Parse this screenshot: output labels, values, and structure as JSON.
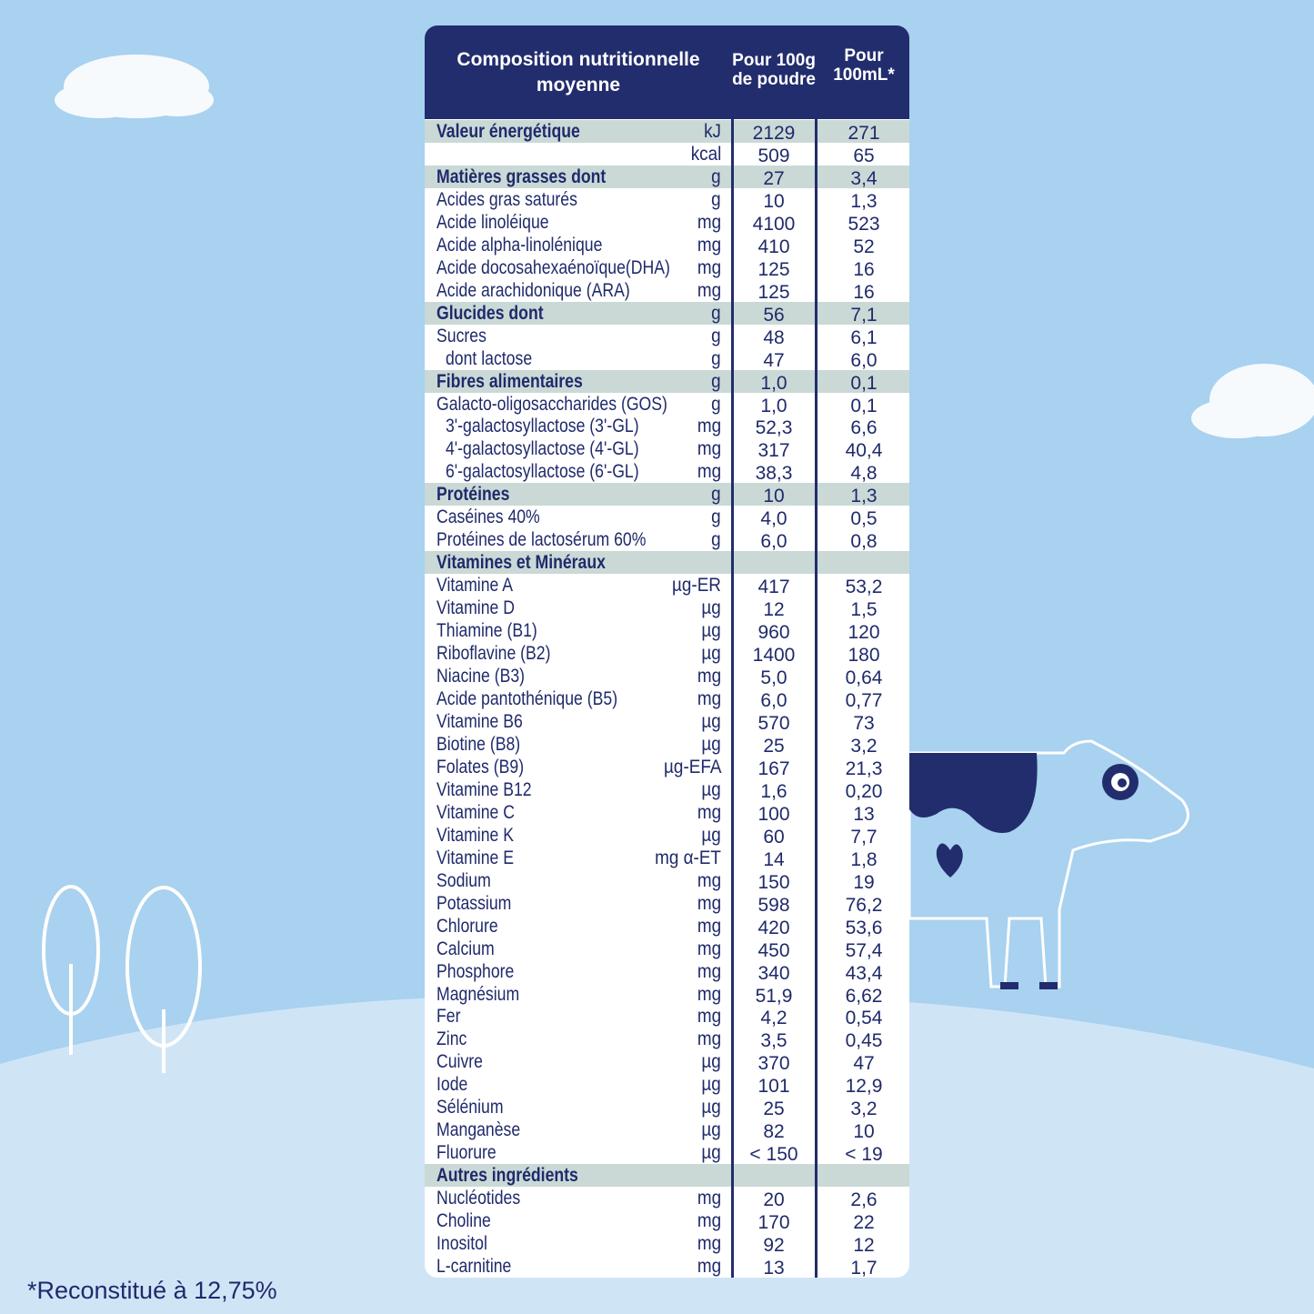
{
  "header": {
    "col1": "Composition nutritionnelle moyenne",
    "col2": "Pour 100g de poudre",
    "col3": "Pour 100mL*"
  },
  "sections": [
    {
      "label": "Valeur énergétique",
      "unit": "kJ",
      "per_100g": "2129",
      "per_100ml": "271",
      "rows": [
        {
          "unit": "kcal",
          "per_100g": "509",
          "per_100ml": "65"
        }
      ]
    },
    {
      "label": "Matières grasses dont",
      "unit": "g",
      "per_100g": "27",
      "per_100ml": "3,4",
      "rows": [
        {
          "label": "Acides gras saturés",
          "unit": "g",
          "per_100g": "10",
          "per_100ml": "1,3"
        },
        {
          "label": "Acide linoléique",
          "unit": "mg",
          "per_100g": "4100",
          "per_100ml": "523"
        },
        {
          "label": "Acide alpha-linolénique",
          "unit": "mg",
          "per_100g": "410",
          "per_100ml": "52"
        },
        {
          "label": "Acide docosahexaénoïque(DHA)",
          "unit": "mg",
          "per_100g": "125",
          "per_100ml": "16"
        },
        {
          "label": "Acide arachidonique (ARA)",
          "unit": "mg",
          "per_100g": "125",
          "per_100ml": "16"
        }
      ]
    },
    {
      "label": "Glucides dont",
      "unit": "g",
      "per_100g": "56",
      "per_100ml": "7,1",
      "rows": [
        {
          "label": "Sucres",
          "unit": "g",
          "per_100g": "48",
          "per_100ml": "6,1",
          "sub": [
            {
              "label": "dont lactose",
              "unit": "g",
              "per_100g": "47",
              "per_100ml": "6,0"
            }
          ]
        }
      ]
    },
    {
      "label": "Fibres alimentaires",
      "unit": "g",
      "per_100g": "1,0",
      "per_100ml": "0,1",
      "rows": [
        {
          "label": "Galacto-oligosaccharides (GOS)",
          "unit": "g",
          "per_100g": "1,0",
          "per_100ml": "0,1",
          "sub": [
            {
              "label": "3'-galactosyllactose (3'-GL)",
              "unit": "mg",
              "per_100g": "52,3",
              "per_100ml": "6,6"
            },
            {
              "label": "4'-galactosyllactose (4'-GL)",
              "unit": "mg",
              "per_100g": "317",
              "per_100ml": "40,4"
            },
            {
              "label": "6'-galactosyllactose (6'-GL)",
              "unit": "mg",
              "per_100g": "38,3",
              "per_100ml": "4,8"
            }
          ]
        }
      ]
    },
    {
      "label": "Protéines",
      "unit": "g",
      "per_100g": "10",
      "per_100ml": "1,3",
      "rows": [
        {
          "label": "Caséines 40%",
          "unit": "g",
          "per_100g": "4,0",
          "per_100ml": "0,5"
        },
        {
          "label": "Protéines de lactosérum 60%",
          "unit": "g",
          "per_100g": "6,0",
          "per_100ml": "0,8"
        }
      ]
    },
    {
      "label": "Vitamines et Minéraux",
      "rows": [
        {
          "label": "Vitamine A",
          "unit": "µg-ER",
          "per_100g": "417",
          "per_100ml": "53,2"
        },
        {
          "label": "Vitamine D",
          "unit": "µg",
          "per_100g": "12",
          "per_100ml": "1,5"
        },
        {
          "label": "Thiamine (B1)",
          "unit": "µg",
          "per_100g": "960",
          "per_100ml": "120"
        },
        {
          "label": "Riboflavine (B2)",
          "unit": "µg",
          "per_100g": "1400",
          "per_100ml": "180"
        },
        {
          "label": "Niacine (B3)",
          "unit": "mg",
          "per_100g": "5,0",
          "per_100ml": "0,64"
        },
        {
          "label": "Acide pantothénique (B5)",
          "unit": "mg",
          "per_100g": "6,0",
          "per_100ml": "0,77"
        },
        {
          "label": "Vitamine B6",
          "unit": "µg",
          "per_100g": "570",
          "per_100ml": "73"
        },
        {
          "label": "Biotine (B8)",
          "unit": "µg",
          "per_100g": "25",
          "per_100ml": "3,2"
        },
        {
          "label": "Folates (B9)",
          "unit": "µg-EFA",
          "per_100g": "167",
          "per_100ml": "21,3"
        },
        {
          "label": "Vitamine B12",
          "unit": "µg",
          "per_100g": "1,6",
          "per_100ml": "0,20"
        },
        {
          "label": "Vitamine C",
          "unit": "mg",
          "per_100g": "100",
          "per_100ml": "13"
        },
        {
          "label": "Vitamine K",
          "unit": "µg",
          "per_100g": "60",
          "per_100ml": "7,7"
        },
        {
          "label": "Vitamine E",
          "unit": "mg α-ET",
          "per_100g": "14",
          "per_100ml": "1,8"
        },
        {
          "label": "Sodium",
          "unit": "mg",
          "per_100g": "150",
          "per_100ml": "19"
        },
        {
          "label": "Potassium",
          "unit": "mg",
          "per_100g": "598",
          "per_100ml": "76,2"
        },
        {
          "label": "Chlorure",
          "unit": "mg",
          "per_100g": "420",
          "per_100ml": "53,6"
        },
        {
          "label": "Calcium",
          "unit": "mg",
          "per_100g": "450",
          "per_100ml": "57,4"
        },
        {
          "label": "Phosphore",
          "unit": "mg",
          "per_100g": "340",
          "per_100ml": "43,4"
        },
        {
          "label": "Magnésium",
          "unit": "mg",
          "per_100g": "51,9",
          "per_100ml": "6,62"
        },
        {
          "label": "Fer",
          "unit": "mg",
          "per_100g": "4,2",
          "per_100ml": "0,54"
        },
        {
          "label": "Zinc",
          "unit": "mg",
          "per_100g": "3,5",
          "per_100ml": "0,45"
        },
        {
          "label": "Cuivre",
          "unit": "µg",
          "per_100g": "370",
          "per_100ml": "47"
        },
        {
          "label": "Iode",
          "unit": "µg",
          "per_100g": "101",
          "per_100ml": "12,9"
        },
        {
          "label": "Sélénium",
          "unit": "µg",
          "per_100g": "25",
          "per_100ml": "3,2"
        },
        {
          "label": "Manganèse",
          "unit": "µg",
          "per_100g": "82",
          "per_100ml": "10"
        },
        {
          "label": "Fluorure",
          "unit": "µg",
          "per_100g": "< 150",
          "per_100ml": "< 19"
        }
      ]
    },
    {
      "label": "Autres ingrédients",
      "rows": [
        {
          "label": "Nucléotides",
          "unit": "mg",
          "per_100g": "20",
          "per_100ml": "2,6"
        },
        {
          "label": "Choline",
          "unit": "mg",
          "per_100g": "170",
          "per_100ml": "22"
        },
        {
          "label": "Inositol",
          "unit": "mg",
          "per_100g": "92",
          "per_100ml": "12"
        },
        {
          "label": "L-carnitine",
          "unit": "mg",
          "per_100g": "13",
          "per_100ml": "1,7"
        }
      ]
    }
  ],
  "footnote": "*Reconstitué à 12,75%"
}
